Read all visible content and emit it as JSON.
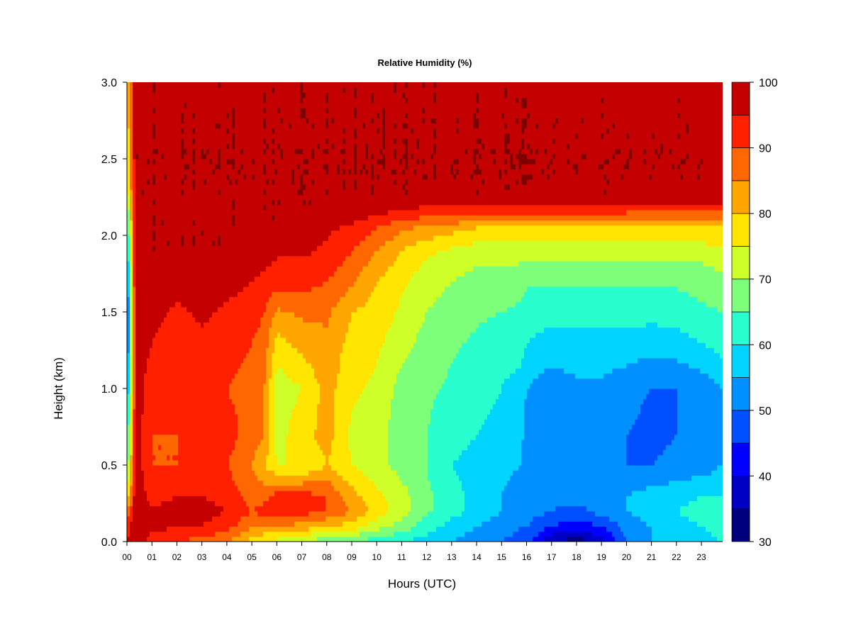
{
  "chart_data": {
    "type": "heatmap",
    "title": "Relative Humidity (%)",
    "xlabel": "Hours (UTC)",
    "ylabel": "Height (km)",
    "x_ticks": [
      "00",
      "01",
      "02",
      "03",
      "04",
      "05",
      "06",
      "07",
      "08",
      "09",
      "10",
      "11",
      "12",
      "13",
      "14",
      "15",
      "16",
      "17",
      "18",
      "19",
      "20",
      "21",
      "22",
      "23"
    ],
    "y_ticks": [
      "0.0",
      "0.5",
      "1.0",
      "1.5",
      "2.0",
      "2.5",
      "3.0"
    ],
    "xlim": [
      0,
      23.85
    ],
    "ylim": [
      0,
      3.0
    ],
    "colorbar": {
      "levels": [
        30,
        35,
        40,
        45,
        50,
        55,
        60,
        65,
        70,
        75,
        80,
        85,
        90,
        95,
        100
      ],
      "tick_labels": [
        "30",
        "40",
        "50",
        "60",
        "70",
        "80",
        "90",
        "100"
      ],
      "colors": [
        "#00007f",
        "#0000c4",
        "#0000ff",
        "#0050ff",
        "#0090ff",
        "#00d4ff",
        "#29ffce",
        "#7dff7a",
        "#ceff29",
        "#ffe500",
        "#ffa600",
        "#ff6800",
        "#ff2000",
        "#c40000",
        "#7f0000"
      ]
    },
    "x_hours": [
      0,
      0.35,
      1,
      2,
      3,
      4,
      5,
      5.5,
      6,
      7,
      8,
      9,
      10,
      11,
      12,
      13,
      14,
      15,
      15.8,
      16,
      17,
      18,
      19,
      20,
      21,
      22,
      23,
      23.8
    ],
    "y_heights": [
      0,
      0.1,
      0.2,
      0.3,
      0.5,
      0.7,
      1.0,
      1.3,
      1.5,
      1.7,
      1.9,
      2.05,
      2.15,
      2.25,
      3.0
    ],
    "rh_grid": [
      [
        95,
        100,
        92,
        90,
        88,
        85,
        78,
        75,
        73,
        70,
        66,
        65,
        62,
        60,
        58,
        55,
        52,
        50,
        48,
        48,
        35,
        32,
        38,
        50,
        55,
        58,
        58,
        60
      ],
      [
        92,
        100,
        97,
        95,
        95,
        92,
        85,
        85,
        85,
        83,
        80,
        78,
        72,
        68,
        62,
        58,
        55,
        52,
        50,
        50,
        45,
        42,
        45,
        52,
        55,
        58,
        60,
        62
      ],
      [
        85,
        100,
        97,
        97,
        97,
        95,
        90,
        92,
        92,
        92,
        90,
        85,
        78,
        72,
        66,
        62,
        58,
        55,
        52,
        52,
        50,
        48,
        52,
        55,
        58,
        60,
        62,
        62
      ],
      [
        75,
        100,
        92,
        95,
        95,
        93,
        88,
        88,
        92,
        92,
        90,
        82,
        76,
        72,
        66,
        62,
        58,
        55,
        53,
        52,
        52,
        52,
        55,
        55,
        57,
        58,
        60,
        60
      ],
      [
        65,
        98,
        90,
        90,
        92,
        90,
        85,
        80,
        75,
        75,
        80,
        75,
        72,
        68,
        65,
        60,
        58,
        56,
        55,
        52,
        52,
        52,
        52,
        50,
        50,
        52,
        52,
        55
      ],
      [
        60,
        98,
        90,
        90,
        92,
        92,
        88,
        85,
        73,
        78,
        82,
        74,
        72,
        67,
        65,
        62,
        60,
        58,
        56,
        52,
        52,
        52,
        52,
        50,
        48,
        50,
        50,
        52
      ],
      [
        52,
        98,
        92,
        90,
        92,
        90,
        88,
        85,
        72,
        75,
        82,
        76,
        74,
        68,
        66,
        64,
        62,
        60,
        58,
        55,
        52,
        54,
        54,
        52,
        50,
        50,
        52,
        55
      ],
      [
        45,
        98,
        95,
        92,
        94,
        92,
        90,
        88,
        78,
        82,
        84,
        78,
        76,
        72,
        68,
        66,
        64,
        62,
        62,
        60,
        58,
        58,
        58,
        58,
        57,
        58,
        60,
        62
      ],
      [
        45,
        98,
        97,
        94,
        96,
        94,
        92,
        90,
        84,
        86,
        86,
        80,
        78,
        74,
        70,
        68,
        66,
        65,
        64,
        62,
        62,
        62,
        62,
        62,
        62,
        62,
        64,
        65
      ],
      [
        48,
        100,
        98,
        97,
        97,
        97,
        95,
        94,
        92,
        92,
        90,
        86,
        80,
        76,
        72,
        70,
        68,
        68,
        67,
        66,
        66,
        66,
        66,
        66,
        66,
        66,
        67,
        68
      ],
      [
        55,
        100,
        100,
        100,
        100,
        100,
        98,
        97,
        96,
        96,
        94,
        90,
        85,
        80,
        76,
        74,
        72,
        72,
        72,
        72,
        72,
        72,
        72,
        72,
        72,
        72,
        72,
        74
      ],
      [
        60,
        100,
        100,
        100,
        100,
        100,
        100,
        100,
        100,
        98,
        96,
        94,
        90,
        86,
        84,
        82,
        80,
        80,
        80,
        80,
        80,
        80,
        80,
        80,
        80,
        80,
        80,
        80
      ],
      [
        62,
        100,
        100,
        100,
        100,
        100,
        100,
        100,
        100,
        100,
        100,
        98,
        96,
        94,
        92,
        92,
        92,
        92,
        92,
        92,
        92,
        92,
        92,
        90,
        90,
        90,
        90,
        90
      ],
      [
        70,
        100,
        100,
        100,
        100,
        100,
        100,
        100,
        100,
        100,
        100,
        100,
        100,
        100,
        100,
        100,
        100,
        100,
        100,
        100,
        100,
        100,
        100,
        100,
        100,
        100,
        100,
        98
      ],
      [
        80,
        100,
        100,
        100,
        100,
        100,
        100,
        100,
        100,
        100,
        100,
        100,
        100,
        100,
        100,
        100,
        100,
        100,
        100,
        100,
        100,
        100,
        100,
        100,
        100,
        100,
        100,
        100
      ]
    ]
  }
}
